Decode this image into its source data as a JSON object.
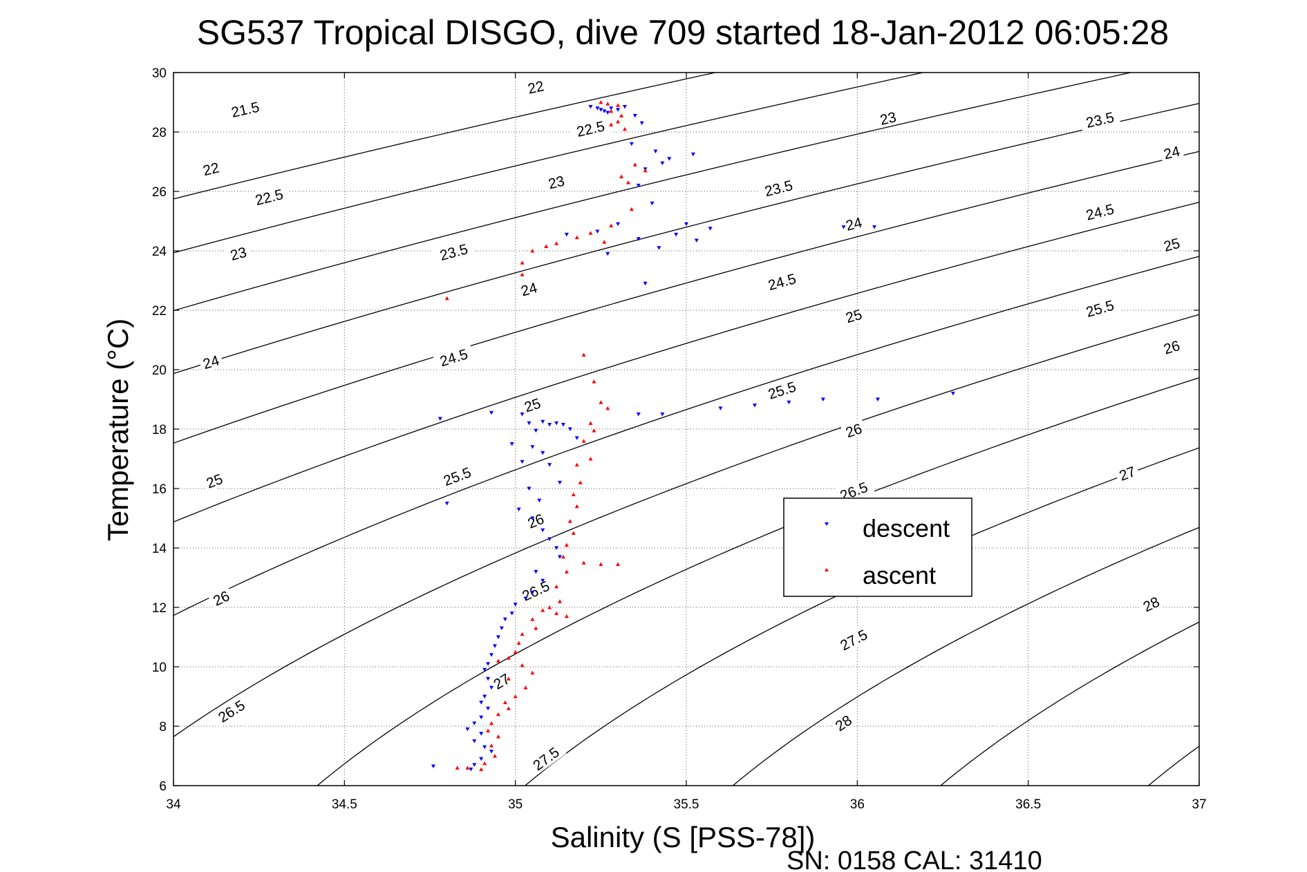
{
  "chart_data": {
    "type": "scatter",
    "title": "SG537 Tropical DISGO, dive 709 started 18-Jan-2012 06:05:28",
    "xlabel": "Salinity (S [PSS-78])",
    "ylabel": "Temperature (°C)",
    "xlim": [
      34,
      37
    ],
    "ylim": [
      6,
      30
    ],
    "x_ticks": [
      34,
      34.5,
      35,
      35.5,
      36,
      36.5,
      37
    ],
    "x_tick_labels": [
      "34",
      "34.5",
      "35",
      "35.5",
      "36",
      "36.5",
      "37"
    ],
    "y_ticks": [
      6,
      8,
      10,
      12,
      14,
      16,
      18,
      20,
      22,
      24,
      26,
      28,
      30
    ],
    "y_tick_labels": [
      "6",
      "8",
      "10",
      "12",
      "14",
      "16",
      "18",
      "20",
      "22",
      "24",
      "26",
      "28",
      "30"
    ],
    "grid": true,
    "legend_position": "center-right",
    "footer": "SN: 0158  CAL: 31410",
    "colors": {
      "descent": "#0000ff",
      "ascent": "#ff0000",
      "contour": "#000000"
    },
    "contours": {
      "levels": [
        21.5,
        22,
        22.5,
        23,
        23.5,
        24,
        24.5,
        25,
        25.5,
        26,
        26.5,
        27,
        27.5,
        28
      ],
      "labels": [
        {
          "text": "21.5",
          "s": 34.21,
          "t": 28.75
        },
        {
          "text": "22",
          "s": 34.11,
          "t": 26.75
        },
        {
          "text": "22.5",
          "s": 34.28,
          "t": 25.8
        },
        {
          "text": "23",
          "s": 34.19,
          "t": 23.9
        },
        {
          "text": "21.5",
          "s": 34.21,
          "t": 28.75
        },
        {
          "text": "22",
          "s": 35.06,
          "t": 29.5
        },
        {
          "text": "22.5",
          "s": 35.22,
          "t": 28.1
        },
        {
          "text": "23",
          "s": 35.12,
          "t": 26.3
        },
        {
          "text": "23.5",
          "s": 34.82,
          "t": 23.95
        },
        {
          "text": "24",
          "s": 35.04,
          "t": 22.7
        },
        {
          "text": "24",
          "s": 34.11,
          "t": 20.25
        },
        {
          "text": "24.5",
          "s": 34.82,
          "t": 20.4
        },
        {
          "text": "25",
          "s": 35.05,
          "t": 18.8
        },
        {
          "text": "25",
          "s": 34.12,
          "t": 16.25
        },
        {
          "text": "25.5",
          "s": 34.83,
          "t": 16.4
        },
        {
          "text": "26",
          "s": 35.06,
          "t": 14.9
        },
        {
          "text": "26",
          "s": 34.14,
          "t": 12.3
        },
        {
          "text": "26.5",
          "s": 35.06,
          "t": 12.55
        },
        {
          "text": "27",
          "s": 34.96,
          "t": 9.5
        },
        {
          "text": "26.5",
          "s": 34.17,
          "t": 8.5
        },
        {
          "text": "27.5",
          "s": 35.09,
          "t": 6.9
        },
        {
          "text": "23",
          "s": 36.09,
          "t": 28.45
        },
        {
          "text": "23.5",
          "s": 35.77,
          "t": 26.1
        },
        {
          "text": "24",
          "s": 35.99,
          "t": 24.9
        },
        {
          "text": "24.5",
          "s": 35.78,
          "t": 22.95
        },
        {
          "text": "25",
          "s": 35.99,
          "t": 21.8
        },
        {
          "text": "25.5",
          "s": 35.78,
          "t": 19.3
        },
        {
          "text": "26",
          "s": 35.99,
          "t": 17.95
        },
        {
          "text": "26.5",
          "s": 35.99,
          "t": 15.9
        },
        {
          "text": "27.5",
          "s": 35.99,
          "t": 10.9
        },
        {
          "text": "28",
          "s": 35.96,
          "t": 8.1
        },
        {
          "text": "23.5",
          "s": 36.71,
          "t": 28.4
        },
        {
          "text": "24",
          "s": 36.92,
          "t": 27.3
        },
        {
          "text": "24.5",
          "s": 36.71,
          "t": 25.3
        },
        {
          "text": "25",
          "s": 36.92,
          "t": 24.2
        },
        {
          "text": "25.5",
          "s": 36.71,
          "t": 22.05
        },
        {
          "text": "26",
          "s": 36.92,
          "t": 20.75
        },
        {
          "text": "27",
          "s": 36.79,
          "t": 16.5
        },
        {
          "text": "28",
          "s": 36.86,
          "t": 12.1
        }
      ]
    },
    "series": [
      {
        "name": "descent",
        "marker": "triangle-down",
        "points": [
          [
            35.22,
            28.85
          ],
          [
            35.24,
            28.8
          ],
          [
            35.25,
            28.75
          ],
          [
            35.26,
            28.7
          ],
          [
            35.27,
            28.65
          ],
          [
            35.28,
            28.8
          ],
          [
            35.3,
            28.75
          ],
          [
            35.32,
            28.85
          ],
          [
            35.35,
            28.55
          ],
          [
            35.37,
            28.3
          ],
          [
            35.34,
            27.6
          ],
          [
            35.41,
            27.35
          ],
          [
            35.45,
            27.1
          ],
          [
            35.52,
            27.25
          ],
          [
            35.43,
            26.95
          ],
          [
            35.38,
            26.75
          ],
          [
            35.36,
            26.2
          ],
          [
            35.4,
            25.6
          ],
          [
            35.15,
            24.55
          ],
          [
            35.24,
            24.65
          ],
          [
            35.3,
            24.9
          ],
          [
            35.36,
            24.4
          ],
          [
            35.42,
            24.1
          ],
          [
            35.47,
            24.55
          ],
          [
            35.5,
            24.9
          ],
          [
            35.57,
            24.75
          ],
          [
            35.53,
            24.35
          ],
          [
            35.27,
            23.9
          ],
          [
            35.38,
            22.9
          ],
          [
            35.96,
            24.8
          ],
          [
            36.05,
            24.8
          ],
          [
            34.78,
            18.35
          ],
          [
            34.93,
            18.55
          ],
          [
            35.02,
            18.5
          ],
          [
            35.04,
            18.2
          ],
          [
            35.06,
            17.95
          ],
          [
            35.08,
            18.25
          ],
          [
            35.1,
            18.15
          ],
          [
            35.12,
            18.2
          ],
          [
            35.14,
            18.15
          ],
          [
            35.16,
            18.0
          ],
          [
            35.18,
            17.7
          ],
          [
            35.05,
            17.4
          ],
          [
            35.08,
            17.2
          ],
          [
            34.99,
            17.5
          ],
          [
            35.02,
            16.9
          ],
          [
            35.1,
            16.8
          ],
          [
            35.13,
            16.2
          ],
          [
            35.04,
            16.0
          ],
          [
            35.07,
            15.6
          ],
          [
            35.01,
            15.3
          ],
          [
            35.05,
            15.0
          ],
          [
            35.08,
            14.6
          ],
          [
            35.1,
            14.3
          ],
          [
            35.12,
            14.0
          ],
          [
            35.13,
            13.7
          ],
          [
            35.06,
            13.2
          ],
          [
            35.08,
            12.9
          ],
          [
            35.05,
            12.5
          ],
          [
            35.03,
            12.3
          ],
          [
            35.0,
            12.1
          ],
          [
            34.99,
            11.8
          ],
          [
            34.97,
            11.6
          ],
          [
            34.96,
            11.3
          ],
          [
            34.95,
            11.0
          ],
          [
            34.94,
            10.7
          ],
          [
            34.93,
            10.4
          ],
          [
            34.92,
            10.1
          ],
          [
            34.91,
            9.9
          ],
          [
            34.92,
            9.6
          ],
          [
            34.93,
            9.3
          ],
          [
            34.91,
            9.0
          ],
          [
            34.9,
            8.8
          ],
          [
            34.92,
            8.6
          ],
          [
            34.9,
            8.3
          ],
          [
            34.88,
            8.1
          ],
          [
            34.86,
            7.9
          ],
          [
            34.9,
            7.75
          ],
          [
            34.88,
            7.5
          ],
          [
            34.91,
            7.3
          ],
          [
            34.93,
            7.15
          ],
          [
            34.9,
            6.9
          ],
          [
            34.88,
            6.7
          ],
          [
            34.87,
            6.55
          ],
          [
            34.76,
            6.65
          ],
          [
            34.8,
            15.5
          ],
          [
            35.6,
            18.7
          ],
          [
            35.7,
            18.8
          ],
          [
            35.8,
            18.9
          ],
          [
            35.9,
            19.0
          ],
          [
            36.06,
            19.0
          ],
          [
            36.28,
            19.2
          ],
          [
            35.43,
            18.5
          ],
          [
            35.36,
            18.5
          ]
        ]
      },
      {
        "name": "ascent",
        "marker": "triangle-up",
        "points": [
          [
            35.25,
            29.0
          ],
          [
            35.27,
            28.95
          ],
          [
            35.3,
            28.9
          ],
          [
            35.28,
            28.7
          ],
          [
            35.31,
            28.55
          ],
          [
            35.3,
            28.35
          ],
          [
            35.28,
            28.25
          ],
          [
            35.32,
            28.1
          ],
          [
            35.35,
            26.9
          ],
          [
            35.38,
            26.7
          ],
          [
            35.31,
            26.5
          ],
          [
            35.33,
            26.3
          ],
          [
            35.34,
            25.4
          ],
          [
            35.28,
            24.85
          ],
          [
            35.22,
            24.6
          ],
          [
            35.18,
            24.45
          ],
          [
            35.26,
            24.3
          ],
          [
            35.12,
            24.25
          ],
          [
            35.09,
            24.15
          ],
          [
            35.05,
            24.0
          ],
          [
            35.02,
            23.6
          ],
          [
            35.02,
            23.2
          ],
          [
            34.8,
            22.4
          ],
          [
            35.2,
            20.5
          ],
          [
            35.23,
            19.6
          ],
          [
            35.25,
            18.9
          ],
          [
            35.27,
            18.7
          ],
          [
            35.22,
            18.2
          ],
          [
            35.23,
            17.95
          ],
          [
            35.2,
            17.6
          ],
          [
            35.22,
            17.0
          ],
          [
            35.18,
            16.8
          ],
          [
            35.19,
            16.2
          ],
          [
            35.17,
            15.8
          ],
          [
            35.18,
            15.4
          ],
          [
            35.16,
            14.9
          ],
          [
            35.17,
            14.5
          ],
          [
            35.15,
            14.1
          ],
          [
            35.14,
            13.7
          ],
          [
            35.2,
            13.5
          ],
          [
            35.25,
            13.45
          ],
          [
            35.3,
            13.45
          ],
          [
            35.15,
            13.2
          ],
          [
            35.12,
            12.7
          ],
          [
            35.13,
            12.2
          ],
          [
            35.1,
            12.0
          ],
          [
            35.12,
            11.8
          ],
          [
            35.15,
            11.7
          ],
          [
            35.08,
            11.9
          ],
          [
            35.05,
            11.6
          ],
          [
            35.06,
            11.3
          ],
          [
            35.02,
            11.1
          ],
          [
            35.01,
            10.8
          ],
          [
            35.0,
            10.5
          ],
          [
            34.98,
            10.3
          ],
          [
            34.95,
            10.2
          ],
          [
            35.02,
            10.05
          ],
          [
            35.05,
            9.8
          ],
          [
            34.98,
            9.6
          ],
          [
            35.03,
            9.3
          ],
          [
            35.0,
            9.0
          ],
          [
            34.97,
            8.8
          ],
          [
            34.98,
            8.6
          ],
          [
            34.95,
            8.4
          ],
          [
            34.93,
            8.1
          ],
          [
            34.92,
            7.85
          ],
          [
            34.95,
            7.65
          ],
          [
            34.93,
            7.35
          ],
          [
            34.94,
            7.0
          ],
          [
            34.91,
            6.75
          ],
          [
            34.9,
            6.55
          ],
          [
            34.86,
            6.6
          ],
          [
            34.83,
            6.6
          ]
        ]
      }
    ]
  }
}
